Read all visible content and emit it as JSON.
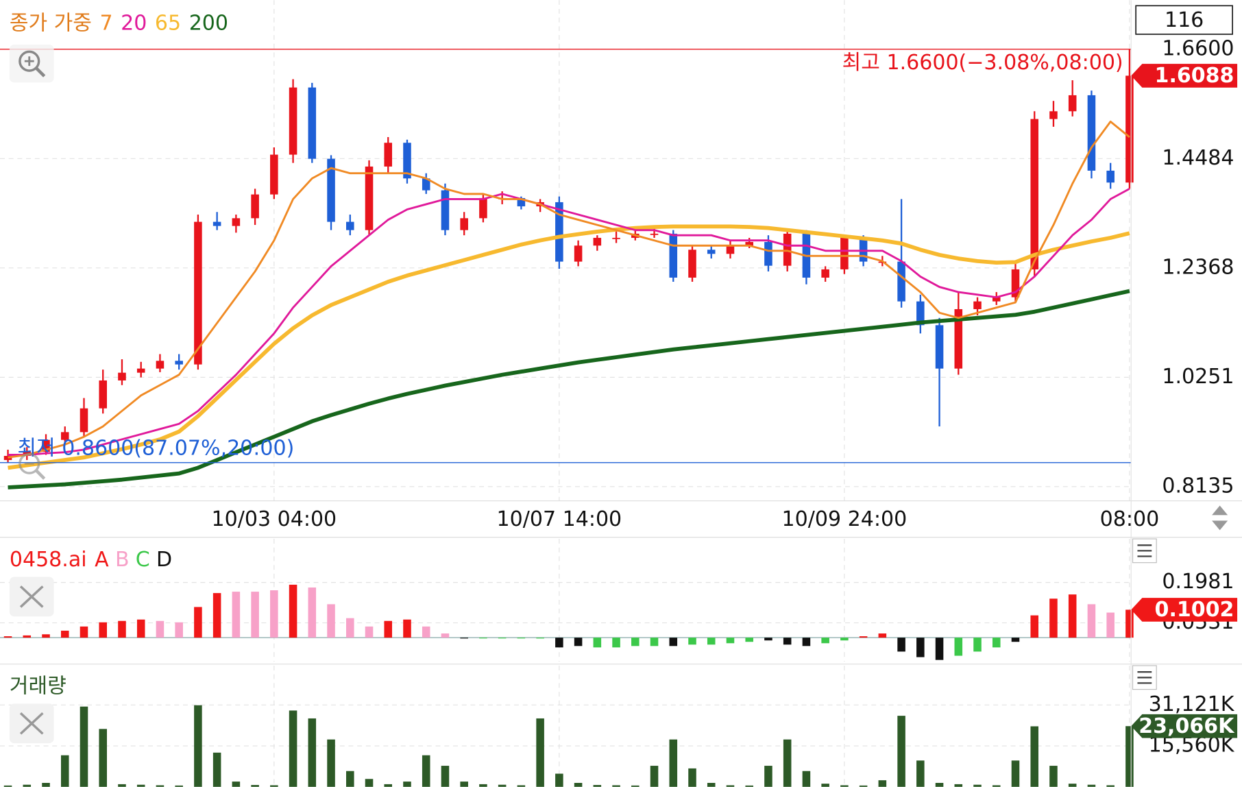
{
  "chart_data": [
    {
      "type": "candlestick",
      "legend_title": "종가 가중",
      "corner_label": "116",
      "categories": [
        null,
        null,
        null,
        null,
        null,
        null,
        null,
        null,
        null,
        null,
        null,
        null,
        null,
        null,
        "10/03 04:00",
        null,
        null,
        null,
        null,
        null,
        null,
        null,
        null,
        null,
        null,
        null,
        null,
        null,
        null,
        "10/07 14:00",
        null,
        null,
        null,
        null,
        null,
        null,
        null,
        null,
        null,
        null,
        null,
        null,
        null,
        null,
        "10/09 24:00",
        null,
        null,
        null,
        null,
        null,
        null,
        null,
        null,
        null,
        null,
        null,
        null,
        null,
        null,
        "08:00"
      ],
      "open": [
        0.865,
        0.873,
        0.881,
        0.904,
        0.919,
        0.965,
        1.019,
        1.034,
        1.042,
        1.057,
        1.05,
        1.326,
        1.318,
        1.333,
        1.379,
        1.456,
        1.586,
        1.448,
        1.326,
        1.31,
        1.433,
        1.479,
        1.41,
        1.387,
        1.31,
        1.333,
        1.372,
        1.372,
        1.356,
        1.364,
        1.249,
        1.28,
        1.295,
        1.295,
        1.303,
        1.303,
        1.218,
        1.272,
        1.264,
        1.28,
        1.287,
        1.241,
        1.303,
        1.218,
        1.234,
        1.295,
        1.249,
        1.249,
        1.172,
        1.126,
        1.042,
        1.157,
        1.172,
        1.18,
        1.234,
        1.525,
        1.54,
        1.571,
        1.425,
        1.402
      ],
      "high": [
        0.885,
        0.89,
        0.915,
        0.93,
        0.985,
        1.04,
        1.06,
        1.055,
        1.07,
        1.07,
        1.34,
        1.345,
        1.34,
        1.39,
        1.47,
        1.602,
        1.595,
        1.455,
        1.34,
        1.445,
        1.49,
        1.485,
        1.42,
        1.4,
        1.345,
        1.38,
        1.385,
        1.375,
        1.37,
        1.375,
        1.29,
        1.3,
        1.31,
        1.31,
        1.315,
        1.31,
        1.28,
        1.28,
        1.29,
        1.295,
        1.3,
        1.31,
        1.31,
        1.24,
        1.3,
        1.3,
        1.26,
        1.37,
        1.185,
        1.14,
        1.19,
        1.18,
        1.19,
        1.245,
        1.54,
        1.56,
        1.6,
        1.58,
        1.44,
        1.66
      ],
      "low": [
        0.86,
        0.865,
        0.875,
        0.895,
        0.91,
        0.955,
        1.01,
        1.025,
        1.035,
        1.04,
        1.04,
        1.31,
        1.305,
        1.32,
        1.37,
        1.44,
        1.44,
        1.31,
        1.3,
        1.3,
        1.42,
        1.4,
        1.38,
        1.3,
        1.3,
        1.325,
        1.36,
        1.35,
        1.345,
        1.235,
        1.24,
        1.27,
        1.285,
        1.29,
        1.295,
        1.21,
        1.21,
        1.255,
        1.255,
        1.275,
        1.23,
        1.23,
        1.205,
        1.21,
        1.225,
        1.24,
        1.24,
        1.16,
        1.11,
        0.93,
        1.03,
        1.145,
        1.165,
        1.17,
        1.22,
        1.51,
        1.53,
        1.41,
        1.39,
        1.39
      ],
      "close": [
        0.873,
        0.881,
        0.904,
        0.919,
        0.965,
        1.019,
        1.034,
        1.042,
        1.057,
        1.05,
        1.326,
        1.318,
        1.333,
        1.379,
        1.456,
        1.586,
        1.448,
        1.326,
        1.31,
        1.433,
        1.479,
        1.41,
        1.387,
        1.31,
        1.333,
        1.372,
        1.372,
        1.356,
        1.364,
        1.249,
        1.28,
        1.295,
        1.295,
        1.303,
        1.303,
        1.218,
        1.272,
        1.264,
        1.28,
        1.287,
        1.241,
        1.303,
        1.218,
        1.234,
        1.295,
        1.249,
        1.249,
        1.172,
        1.126,
        1.042,
        1.157,
        1.172,
        1.18,
        1.234,
        1.525,
        1.54,
        1.571,
        1.425,
        1.402,
        1.6088
      ],
      "up_color": "#e8141c",
      "down_color": "#1e5fd6",
      "series": [
        {
          "name": "7",
          "color": "#f08a24",
          "values": [
            0.87,
            0.875,
            0.885,
            0.895,
            0.91,
            0.93,
            0.96,
            0.99,
            1.01,
            1.03,
            1.08,
            1.13,
            1.18,
            1.23,
            1.29,
            1.37,
            1.41,
            1.43,
            1.42,
            1.42,
            1.42,
            1.42,
            1.41,
            1.39,
            1.38,
            1.38,
            1.37,
            1.37,
            1.36,
            1.34,
            1.33,
            1.32,
            1.31,
            1.3,
            1.29,
            1.28,
            1.28,
            1.28,
            1.28,
            1.28,
            1.27,
            1.27,
            1.26,
            1.26,
            1.26,
            1.26,
            1.25,
            1.22,
            1.19,
            1.15,
            1.14,
            1.15,
            1.16,
            1.17,
            1.25,
            1.32,
            1.4,
            1.47,
            1.52,
            1.49
          ]
        },
        {
          "name": "20",
          "color": "#e0199a",
          "values": [
            0.875,
            0.875,
            0.878,
            0.88,
            0.885,
            0.895,
            0.905,
            0.915,
            0.925,
            0.935,
            0.96,
            0.995,
            1.03,
            1.07,
            1.11,
            1.16,
            1.2,
            1.24,
            1.27,
            1.3,
            1.33,
            1.35,
            1.36,
            1.37,
            1.37,
            1.37,
            1.38,
            1.37,
            1.36,
            1.35,
            1.34,
            1.33,
            1.32,
            1.31,
            1.31,
            1.3,
            1.3,
            1.3,
            1.29,
            1.29,
            1.29,
            1.28,
            1.28,
            1.27,
            1.27,
            1.27,
            1.27,
            1.25,
            1.22,
            1.2,
            1.19,
            1.185,
            1.18,
            1.19,
            1.22,
            1.26,
            1.3,
            1.33,
            1.37,
            1.39
          ]
        },
        {
          "name": "65",
          "color": "#f7b92f",
          "values": [
            0.85,
            0.855,
            0.86,
            0.865,
            0.87,
            0.878,
            0.886,
            0.895,
            0.905,
            0.92,
            0.95,
            0.985,
            1.02,
            1.055,
            1.09,
            1.12,
            1.145,
            1.165,
            1.18,
            1.195,
            1.21,
            1.222,
            1.232,
            1.242,
            1.252,
            1.262,
            1.272,
            1.282,
            1.29,
            1.297,
            1.302,
            1.307,
            1.311,
            1.314,
            1.316,
            1.317,
            1.317,
            1.317,
            1.317,
            1.316,
            1.314,
            1.31,
            1.306,
            1.302,
            1.298,
            1.294,
            1.29,
            1.284,
            1.272,
            1.262,
            1.255,
            1.25,
            1.247,
            1.248,
            1.262,
            1.272,
            1.28,
            1.288,
            1.295,
            1.304
          ]
        },
        {
          "name": "200",
          "color": "#17661c",
          "values": [
            0.812,
            0.814,
            0.816,
            0.818,
            0.821,
            0.824,
            0.827,
            0.831,
            0.835,
            0.839,
            0.85,
            0.865,
            0.88,
            0.895,
            0.91,
            0.925,
            0.94,
            0.952,
            0.963,
            0.974,
            0.984,
            0.993,
            1.001,
            1.009,
            1.016,
            1.023,
            1.03,
            1.036,
            1.042,
            1.048,
            1.054,
            1.059,
            1.064,
            1.069,
            1.074,
            1.079,
            1.083,
            1.087,
            1.091,
            1.095,
            1.099,
            1.103,
            1.107,
            1.111,
            1.115,
            1.119,
            1.123,
            1.127,
            1.131,
            1.134,
            1.137,
            1.14,
            1.143,
            1.146,
            1.152,
            1.16,
            1.168,
            1.176,
            1.184,
            1.192
          ]
        }
      ],
      "ylim": [
        0.786,
        1.755
      ],
      "yticks": [
        {
          "value": 1.66,
          "label": "1.6600"
        },
        1.4484,
        1.2368,
        1.0251,
        0.8135
      ],
      "current": 1.6088,
      "high_mark": {
        "value": 1.66,
        "label": "최고 1.6600(−3.08%,08:00)"
      },
      "low_mark": {
        "value": 0.86,
        "label": "최저 0.8600(87.07%,20:00)"
      },
      "grid": true
    },
    {
      "type": "bar",
      "title": "0458.ai",
      "series": [
        {
          "name": "A",
          "color": "#f01818",
          "values": [
            0.005,
            0.008,
            0.012,
            0.025,
            0.04,
            0.055,
            0.06,
            0.065,
            null,
            null,
            0.11,
            0.16,
            null,
            null,
            null,
            0.19,
            null,
            null,
            null,
            null,
            0.06,
            0.065,
            null,
            null,
            null,
            null,
            null,
            null,
            null,
            null,
            null,
            null,
            null,
            null,
            null,
            null,
            null,
            null,
            null,
            null,
            null,
            null,
            null,
            null,
            null,
            0.005,
            0.015,
            null,
            null,
            null,
            null,
            null,
            null,
            null,
            0.08,
            0.14,
            0.155,
            null,
            null,
            0.1002
          ]
        },
        {
          "name": "B",
          "color": "#f7a1c8",
          "values": [
            null,
            null,
            null,
            null,
            null,
            null,
            null,
            null,
            0.06,
            0.055,
            null,
            null,
            0.165,
            0.165,
            0.17,
            null,
            0.18,
            0.12,
            0.07,
            0.04,
            null,
            null,
            0.04,
            0.015,
            null,
            null,
            null,
            null,
            null,
            null,
            null,
            null,
            null,
            null,
            null,
            null,
            null,
            null,
            null,
            null,
            null,
            null,
            null,
            null,
            null,
            null,
            null,
            null,
            null,
            null,
            null,
            null,
            null,
            null,
            null,
            null,
            null,
            0.12,
            0.09,
            null
          ]
        },
        {
          "name": "C",
          "color": "#3cc84a",
          "values": [
            null,
            null,
            null,
            null,
            null,
            null,
            null,
            null,
            null,
            null,
            null,
            null,
            null,
            null,
            null,
            null,
            null,
            null,
            null,
            null,
            null,
            null,
            null,
            null,
            null,
            -0.002,
            -0.002,
            -0.002,
            -0.003,
            null,
            null,
            -0.035,
            -0.035,
            -0.03,
            -0.03,
            null,
            -0.025,
            -0.025,
            -0.02,
            -0.015,
            null,
            null,
            null,
            -0.02,
            -0.01,
            null,
            null,
            null,
            null,
            null,
            -0.065,
            -0.05,
            -0.035,
            null,
            null,
            null,
            null,
            null,
            null,
            null
          ]
        },
        {
          "name": "D",
          "color": "#111111",
          "values": [
            null,
            null,
            null,
            null,
            null,
            null,
            null,
            null,
            null,
            null,
            null,
            null,
            null,
            null,
            null,
            null,
            null,
            null,
            null,
            null,
            null,
            null,
            null,
            null,
            -0.003,
            null,
            null,
            null,
            null,
            -0.035,
            -0.03,
            null,
            null,
            null,
            null,
            -0.03,
            null,
            null,
            null,
            null,
            -0.01,
            -0.025,
            -0.03,
            null,
            null,
            null,
            null,
            -0.05,
            -0.07,
            -0.08,
            null,
            null,
            null,
            -0.015,
            null,
            null,
            null,
            null,
            null,
            null
          ]
        }
      ],
      "ylim": [
        -0.0862,
        0.3545
      ],
      "yticks": [
        0.1981,
        0.0531
      ],
      "current": 0.1002,
      "current_color": "#f01818",
      "grid": true
    },
    {
      "type": "bar",
      "title": "거래량",
      "series": [
        {
          "color": "#2d5a27",
          "values": [
            500,
            800,
            1500,
            12000,
            30500,
            22000,
            1000,
            800,
            600,
            500,
            31000,
            13000,
            2000,
            700,
            600,
            29000,
            26000,
            18000,
            6000,
            3000,
            1000,
            2000,
            12000,
            8000,
            2000,
            1000,
            800,
            600,
            26000,
            5000,
            1500,
            700,
            600,
            500,
            8000,
            18000,
            7000,
            1500,
            600,
            500,
            8000,
            18000,
            6000,
            1200,
            600,
            500,
            2500,
            27000,
            10000,
            1500,
            1000,
            800,
            600,
            10000,
            23000,
            8000,
            1200,
            800,
            600,
            23066
          ]
        }
      ],
      "ylim": [
        0,
        46060
      ],
      "yticks": [
        {
          "value": 31121,
          "label": "31,121K"
        },
        {
          "value": 15560,
          "label": "15,560K"
        }
      ],
      "current": {
        "value": 23066,
        "label": "23,066K"
      },
      "current_color": "#2d5a27",
      "grid": true
    }
  ]
}
